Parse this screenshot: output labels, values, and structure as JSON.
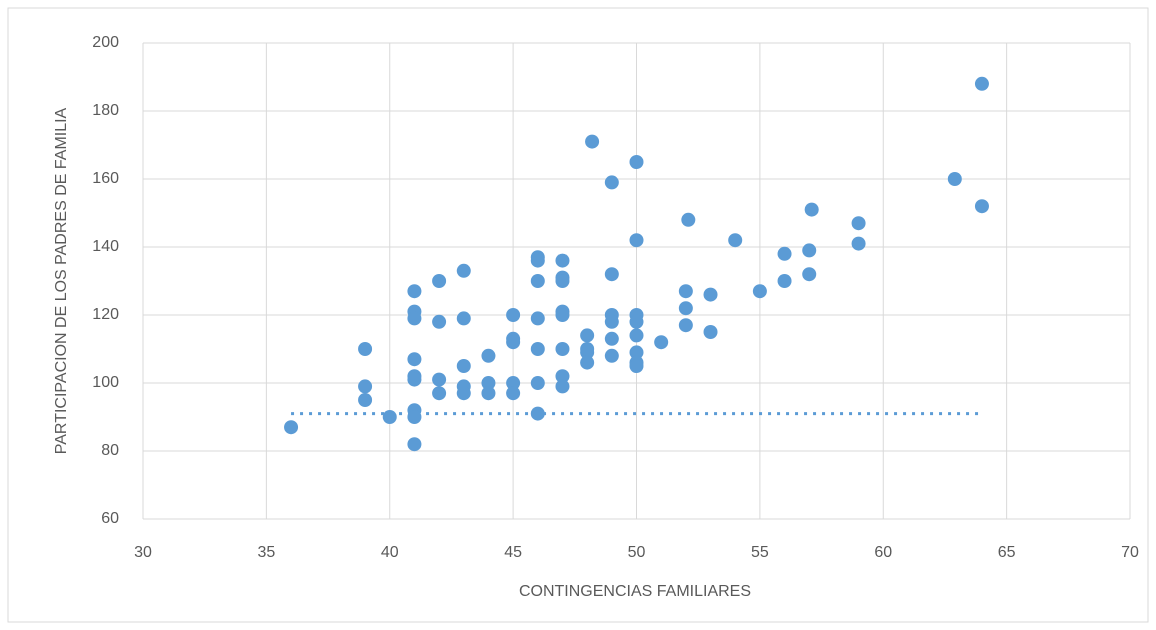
{
  "chart_data": {
    "type": "scatter",
    "xlabel": "CONTINGENCIAS FAMILIARES",
    "ylabel": "PARTICIPACION DE LOS PADRES DE FAMILIA",
    "xlim": [
      30,
      70
    ],
    "xticks": [
      30,
      35,
      40,
      45,
      50,
      55,
      60,
      65,
      70
    ],
    "ylim": [
      60,
      200
    ],
    "yticks": [
      60,
      80,
      100,
      120,
      140,
      160,
      180,
      200
    ],
    "grid": true,
    "series": [
      {
        "color": "#5b9bd5",
        "x": [
          36,
          39,
          39,
          39,
          40,
          41,
          41,
          41,
          41,
          41,
          41,
          41,
          41,
          41,
          42,
          42,
          42,
          42,
          43,
          43,
          43,
          43,
          43,
          44,
          44,
          44,
          45,
          45,
          45,
          45,
          45,
          46,
          46,
          46,
          46,
          46,
          46,
          46,
          47,
          47,
          47,
          47,
          47,
          47,
          47,
          47,
          48,
          48,
          48,
          48,
          48.2,
          49,
          49,
          49,
          49,
          49,
          49,
          50,
          50,
          50,
          50,
          50,
          50,
          50,
          50,
          51,
          52,
          52,
          52,
          52.1,
          53,
          53,
          54,
          55,
          56,
          56,
          57,
          57,
          57.1,
          59,
          59,
          62.9,
          64,
          64
        ],
        "y": [
          87,
          110,
          99,
          95,
          90,
          82,
          127,
          121,
          119,
          107,
          102,
          101,
          92,
          90,
          130,
          118,
          101,
          97,
          133,
          119,
          105,
          99,
          97,
          108,
          100,
          97,
          120,
          113,
          112,
          100,
          97,
          137,
          136,
          130,
          119,
          110,
          100,
          91,
          136,
          131,
          130,
          121,
          120,
          110,
          102,
          99,
          114,
          110,
          109,
          106,
          171,
          159,
          132,
          120,
          118,
          113,
          108,
          165,
          142,
          120,
          118,
          114,
          109,
          106,
          105,
          112,
          127,
          122,
          117,
          148,
          126,
          115,
          142,
          127,
          138,
          130,
          139,
          132,
          151,
          147,
          141,
          160,
          188,
          152
        ]
      }
    ],
    "trendline": {
      "color": "#5b9bd5",
      "x": [
        36,
        64
      ],
      "y": [
        91,
        91
      ]
    }
  }
}
